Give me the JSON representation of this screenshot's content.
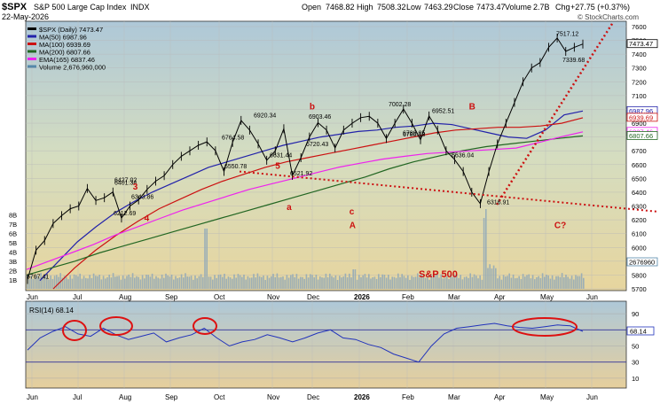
{
  "header": {
    "symbol": "$SPX",
    "name": "S&P 500 Large Cap Index",
    "exchange": "INDX",
    "date": "22-May-2026",
    "open_label": "Open",
    "open": "7468.82",
    "high_label": "High",
    "high": "7508.32",
    "low_label": "Low",
    "low": "7463.29",
    "close_label": "Close",
    "close": "7473.47",
    "volume_label": "Volume",
    "volume": "2.7B",
    "chg_label": "Chg",
    "chg": "+27.75 (+0.37%)",
    "watermark": "© StockCharts.com"
  },
  "legend": [
    {
      "text": "$SPX (Daily) 7473.47",
      "color": "#000000"
    },
    {
      "text": "MA(50) 6987.96",
      "color": "#2222aa"
    },
    {
      "text": "MA(100) 6939.69",
      "color": "#cc1111"
    },
    {
      "text": "MA(200) 6807.66",
      "color": "#226622"
    },
    {
      "text": "EMA(165) 6837.46",
      "color": "#ee22ee"
    },
    {
      "text": "Volume 2,676,960,000",
      "color": "#5588aa"
    }
  ],
  "rsi_label": "RSI(14) 68.14",
  "watermark_text": "S&P 500",
  "annotations": [
    {
      "text": "5",
      "x": 87,
      "y": 6570,
      "color": "#cc1111"
    },
    {
      "text": "b",
      "x": 99,
      "y": 7000,
      "color": "#cc1111"
    },
    {
      "text": "B",
      "x": 155,
      "y": 7000,
      "color": "#cc1111"
    },
    {
      "text": "3",
      "x": 37,
      "y": 6420,
      "color": "#cc1111"
    },
    {
      "text": "4",
      "x": 41,
      "y": 6190,
      "color": "#cc1111"
    },
    {
      "text": "a",
      "x": 91,
      "y": 6270,
      "color": "#cc1111"
    },
    {
      "text": "c",
      "x": 113,
      "y": 6240,
      "color": "#cc1111"
    },
    {
      "text": "A",
      "x": 113,
      "y": 6140,
      "color": "#cc1111"
    },
    {
      "text": "C?",
      "x": 185,
      "y": 6140,
      "color": "#cc1111"
    }
  ],
  "chart_data": [
    {
      "type": "line",
      "title": "$SPX S&P 500 Large Cap Index INDX",
      "x_axis": [
        "Jun",
        "Jul",
        "Aug",
        "Sep",
        "Oct",
        "Nov",
        "Dec",
        "2026",
        "Feb",
        "Mar",
        "Apr",
        "May",
        "Jun"
      ],
      "y_ticks": [
        5700,
        5800,
        5900,
        6000,
        6100,
        6200,
        6300,
        6400,
        6500,
        6600,
        6700,
        6800,
        6900,
        7000,
        7100,
        7200,
        7300,
        7400,
        7500,
        7600
      ],
      "ylim": [
        5700,
        7600
      ],
      "volume_ticks": [
        "1B",
        "2B",
        "3B",
        "4B",
        "5B",
        "6B",
        "7B",
        "8B"
      ],
      "series": [
        {
          "name": "$SPX (Daily)",
          "values": [
            5767.41,
            5980,
            6050,
            6173,
            6230,
            6280,
            6300,
            6427.02,
            6340,
            6360,
            6401.34,
            6212.69,
            6300,
            6343.86,
            6420,
            6480,
            6520,
            6600,
            6660,
            6700,
            6740,
            6764.58,
            6700,
            6550.78,
            6760,
            6920.34,
            6850,
            6750,
            6631.44,
            6700,
            6860,
            6521.92,
            6650,
            6800,
            6903.46,
            6850,
            6720.43,
            6850,
            6900,
            6940,
            6950,
            6900,
            6789.05,
            6900,
            7002.28,
            6900,
            6780.13,
            6952.51,
            6850,
            6700,
            6636.04,
            6550,
            6400,
            6316.91,
            6550,
            6750,
            6900,
            7050,
            7200,
            7300,
            7339.68,
            7450,
            7517.12,
            7420,
            7450,
            7473.47
          ]
        },
        {
          "name": "MA(50)",
          "values": [
            5760,
            5900,
            6040,
            6150,
            6250,
            6330,
            6400,
            6460,
            6520,
            6580,
            6620,
            6660,
            6700,
            6740,
            6770,
            6800,
            6820,
            6840,
            6850,
            6870,
            6880,
            6900,
            6890,
            6860,
            6830,
            6800,
            6790,
            6850,
            6960,
            6987.96
          ]
        },
        {
          "name": "MA(100)",
          "values": [
            5700,
            5850,
            5980,
            6090,
            6190,
            6280,
            6350,
            6420,
            6480,
            6530,
            6580,
            6620,
            6650,
            6680,
            6710,
            6740,
            6770,
            6800,
            6830,
            6850,
            6860,
            6870,
            6870,
            6880,
            6900,
            6939.69
          ]
        },
        {
          "name": "MA(200)",
          "values": [
            5800,
            5850,
            5900,
            5960,
            6010,
            6060,
            6110,
            6160,
            6210,
            6260,
            6310,
            6360,
            6410,
            6460,
            6510,
            6570,
            6620,
            6660,
            6700,
            6730,
            6750,
            6770,
            6790,
            6807.66
          ]
        },
        {
          "name": "EMA(165)",
          "values": [
            5840,
            5900,
            5960,
            6020,
            6090,
            6150,
            6210,
            6270,
            6320,
            6370,
            6420,
            6460,
            6500,
            6540,
            6580,
            6610,
            6640,
            6660,
            6680,
            6690,
            6700,
            6710,
            6720,
            6760,
            6800,
            6837.46
          ]
        }
      ],
      "price_labels": [
        "6427.02",
        "6401.34",
        "6343.86",
        "6212.69",
        "6764.58",
        "6550.78",
        "6920.34",
        "6631.44",
        "6521.92",
        "6903.46",
        "6720.43",
        "6789.05",
        "7002.28",
        "6780.13",
        "6952.51",
        "6636.04",
        "6316.91",
        "7339.68",
        "7517.12",
        "5767.41"
      ],
      "right_axis_boxes": [
        "7473.47",
        "6987.96",
        "6939.69",
        "6837.46",
        "6807.66",
        "2676960"
      ]
    },
    {
      "type": "line",
      "title": "RSI(14) 68.14",
      "y_ticks": [
        10,
        30,
        50,
        70,
        90
      ],
      "ylim": [
        0,
        100
      ],
      "series": [
        {
          "name": "RSI(14)",
          "values": [
            45,
            60,
            68,
            74,
            65,
            62,
            72,
            64,
            58,
            62,
            66,
            55,
            60,
            64,
            72,
            60,
            50,
            55,
            58,
            64,
            60,
            55,
            60,
            66,
            70,
            60,
            58,
            52,
            48,
            40,
            35,
            30,
            50,
            65,
            72,
            74,
            76,
            78,
            75,
            73,
            72,
            74,
            76,
            75,
            68.14
          ]
        }
      ],
      "current": "68.14"
    }
  ]
}
